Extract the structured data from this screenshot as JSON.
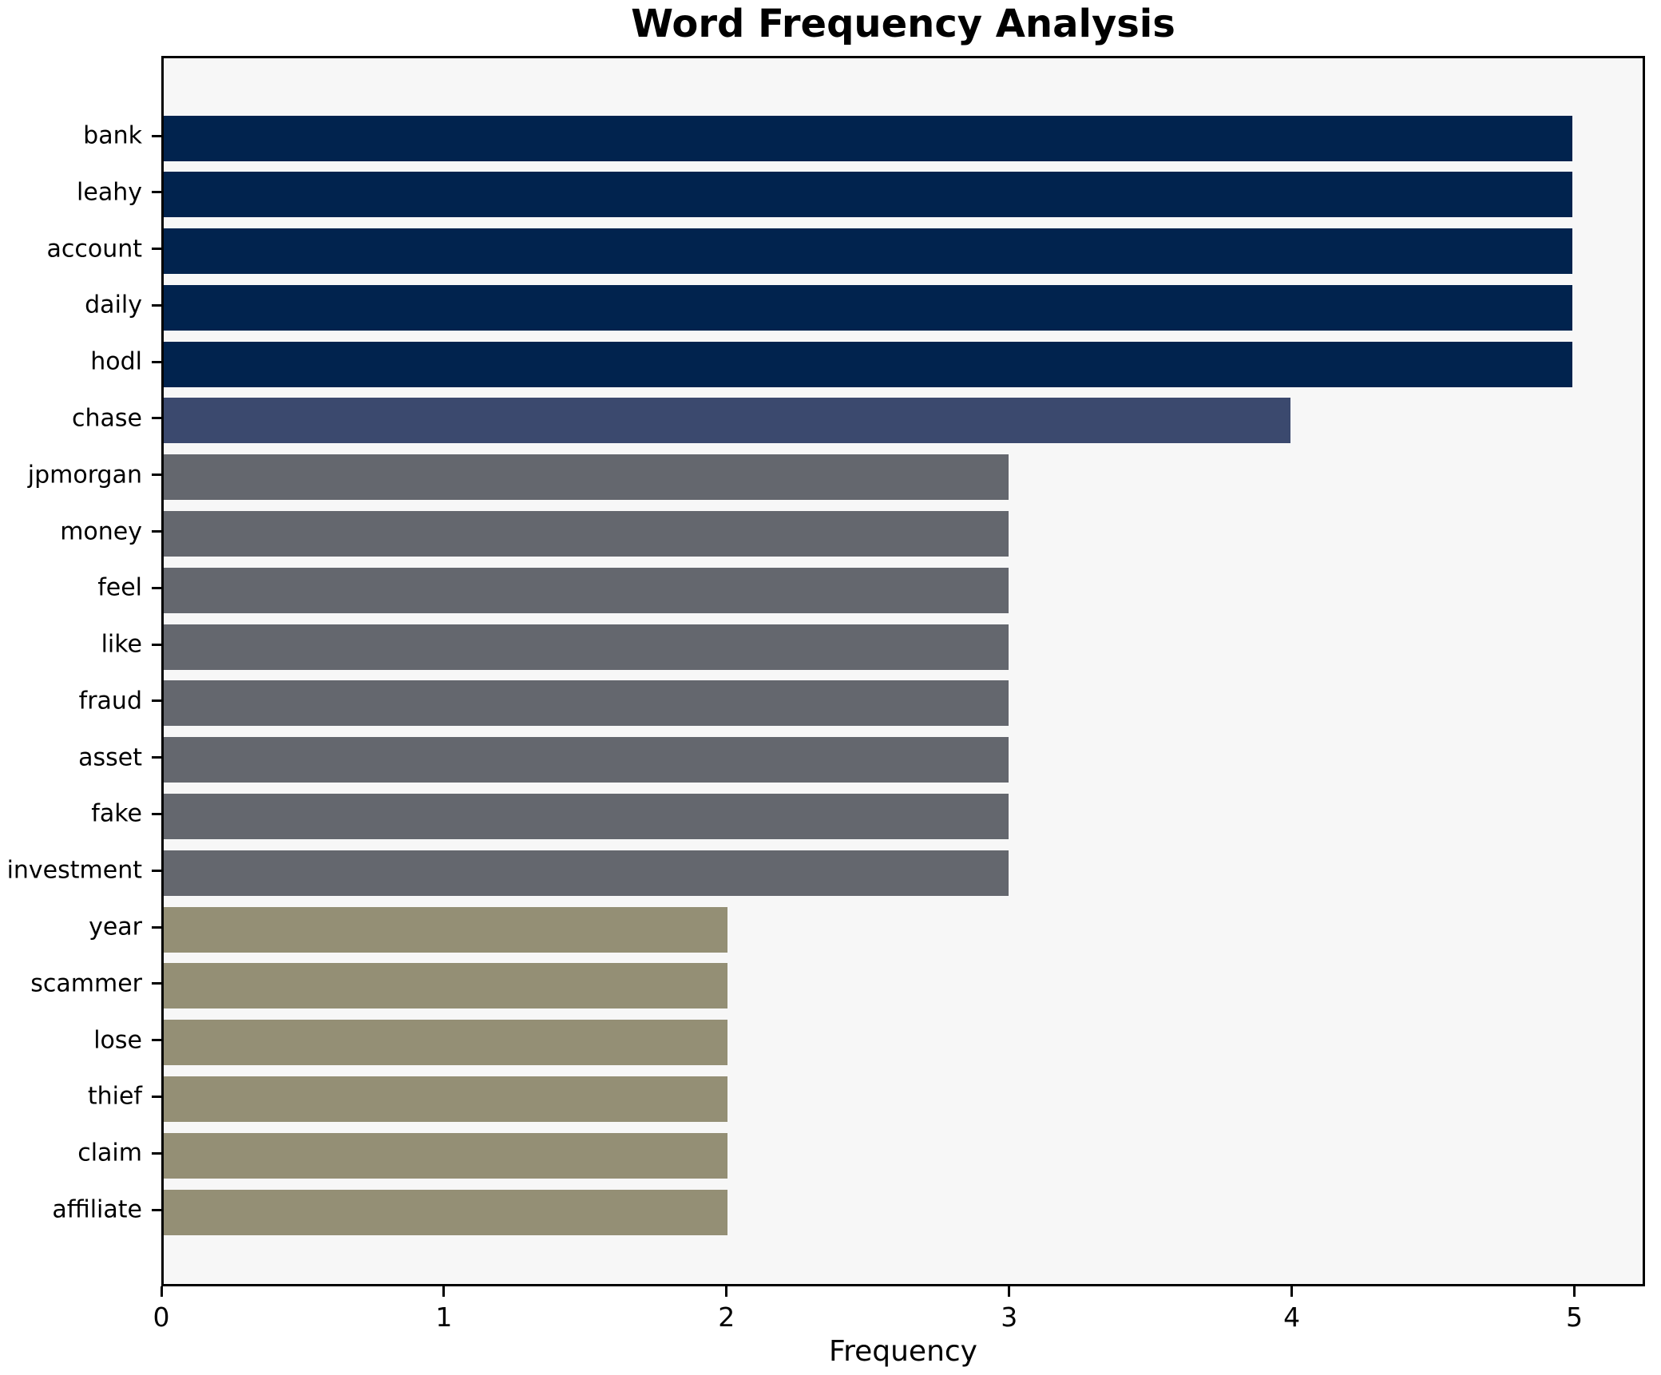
{
  "title": "Word Frequency Analysis",
  "chart_data": {
    "type": "bar",
    "orientation": "horizontal",
    "title": "Word Frequency Analysis",
    "xlabel": "Frequency",
    "ylabel": "",
    "categories": [
      "bank",
      "leahy",
      "account",
      "daily",
      "hodl",
      "chase",
      "jpmorgan",
      "money",
      "feel",
      "like",
      "fraud",
      "asset",
      "fake",
      "investment",
      "year",
      "scammer",
      "lose",
      "thief",
      "claim",
      "affiliate"
    ],
    "values": [
      5,
      5,
      5,
      5,
      5,
      4,
      3,
      3,
      3,
      3,
      3,
      3,
      3,
      3,
      2,
      2,
      2,
      2,
      2,
      2
    ],
    "colors": [
      "#01234e",
      "#01234e",
      "#01234e",
      "#01234e",
      "#01234e",
      "#3b496e",
      "#64676e",
      "#64676e",
      "#64676e",
      "#64676e",
      "#64676e",
      "#64676e",
      "#64676e",
      "#64676e",
      "#948f75",
      "#948f75",
      "#948f75",
      "#948f75",
      "#948f75",
      "#948f75"
    ],
    "xlim": [
      0,
      5.25
    ],
    "xticks": [
      0,
      1,
      2,
      3,
      4,
      5
    ],
    "grid": false,
    "legend": "none",
    "plot_bg": "#f7f7f7",
    "fig_bg": "#ffffff",
    "spine_color": "#000000"
  }
}
